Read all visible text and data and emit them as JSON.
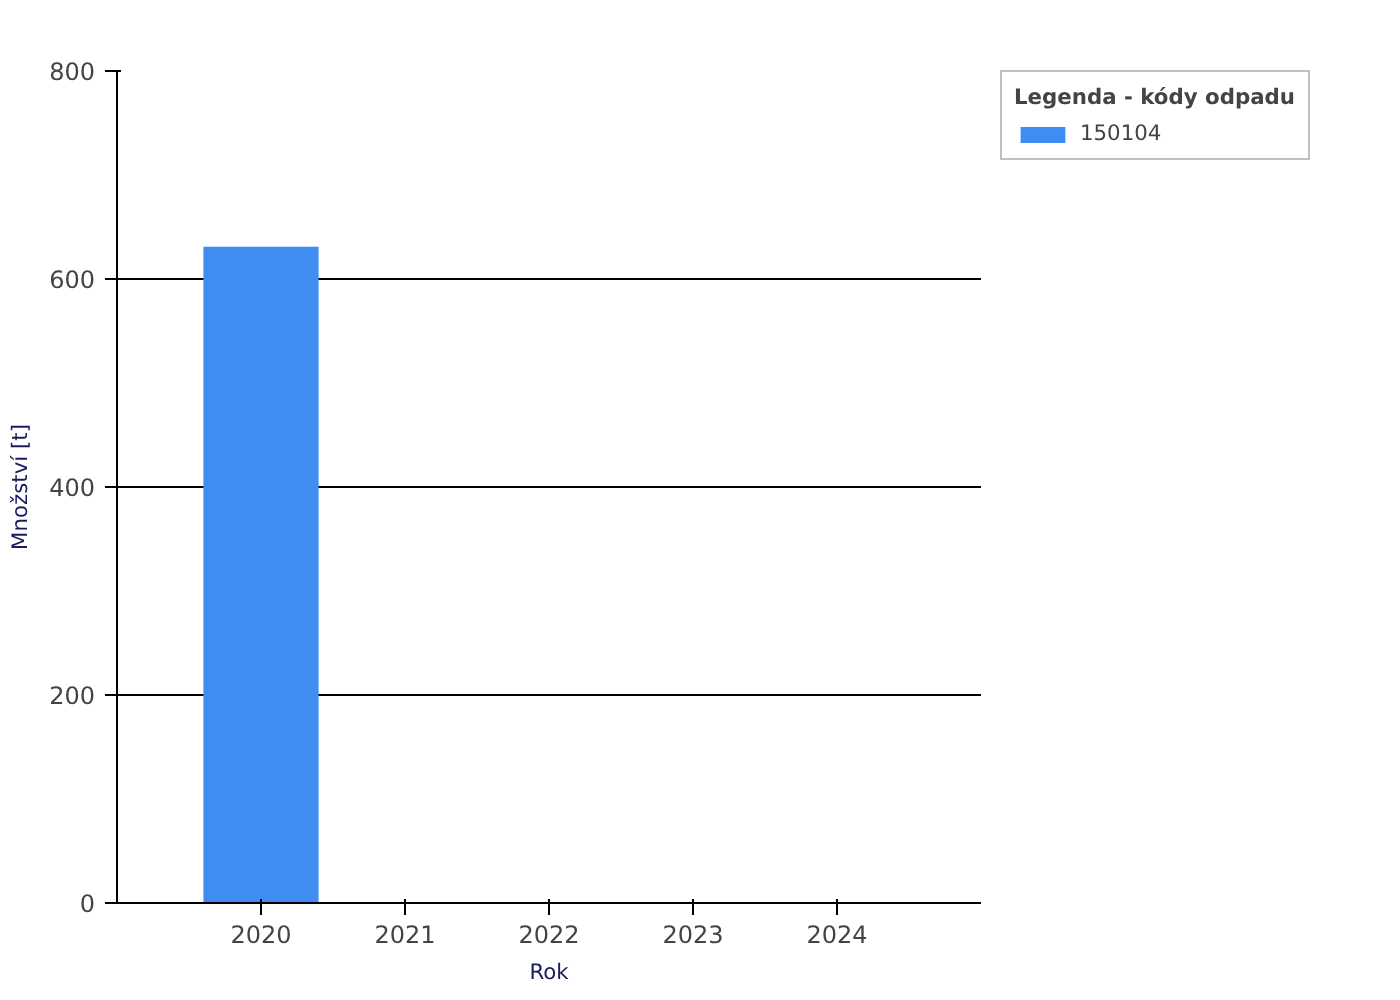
{
  "chart_data": {
    "type": "bar",
    "xlabel": "Rok",
    "ylabel": "Množství [t]",
    "legend_title": "Legenda - kódy odpadu",
    "categories": [
      "2020",
      "2021",
      "2022",
      "2023",
      "2024"
    ],
    "series": [
      {
        "name": "150104",
        "color": "#418cf0",
        "values": [
          631,
          0,
          0,
          0,
          0
        ]
      }
    ],
    "ylim": [
      0,
      800
    ],
    "yticks": [
      0,
      200,
      400,
      600,
      800
    ],
    "grid": "y",
    "legend": "top right"
  }
}
